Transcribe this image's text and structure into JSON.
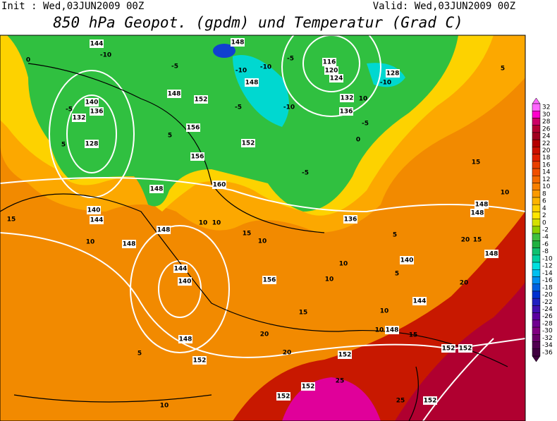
{
  "header": {
    "init": "Init : Wed,03JUN2009 00Z",
    "valid": "Valid: Wed,03JUN2009 00Z",
    "title": "850 hPa Geopot. (gpdm) und Temperatur (Grad C)"
  },
  "colorbar": {
    "labels": [
      32,
      30,
      28,
      26,
      24,
      22,
      20,
      18,
      16,
      14,
      12,
      10,
      8,
      6,
      4,
      2,
      0,
      -2,
      -4,
      -6,
      -8,
      -10,
      -12,
      -14,
      -16,
      -18,
      -20,
      -22,
      -24,
      -26,
      -28,
      -30,
      -32,
      -34,
      -36
    ],
    "colors": [
      "#ff66ff",
      "#ff00cc",
      "#cc0066",
      "#b30030",
      "#a00020",
      "#b40000",
      "#cc1000",
      "#e02000",
      "#e84000",
      "#f05000",
      "#f46a00",
      "#f88000",
      "#fa9a00",
      "#fcb400",
      "#fdd000",
      "#ffe600",
      "#d4e000",
      "#8cd000",
      "#40c040",
      "#20b040",
      "#10c070",
      "#00d0a0",
      "#00e0e0",
      "#00c0f0",
      "#0090f0",
      "#0060e0",
      "#0030d0",
      "#2020c0",
      "#4010b0",
      "#5a00a0",
      "#700090",
      "#800080",
      "#6a006a",
      "#500050",
      "#400040"
    ]
  },
  "map_labels": [
    144,
    -10,
    0,
    -5,
    148,
    -10,
    148,
    -10,
    -5,
    116,
    120,
    124,
    128,
    -10,
    148,
    152,
    132,
    10,
    -5,
    140,
    136,
    132,
    5,
    -5,
    -10,
    136,
    128,
    156,
    5,
    152,
    -5,
    0,
    156,
    -5,
    148,
    160,
    140,
    144,
    15,
    10,
    148,
    148,
    10,
    10,
    15,
    10,
    136,
    5,
    148,
    148,
    10,
    15,
    5,
    20,
    15,
    148,
    140,
    5,
    10,
    10,
    156,
    144,
    140,
    144,
    10,
    10,
    148,
    15,
    20,
    15,
    20,
    20,
    148,
    152,
    152,
    5,
    152,
    152,
    25,
    152,
    152,
    10,
    25,
    152
  ]
}
